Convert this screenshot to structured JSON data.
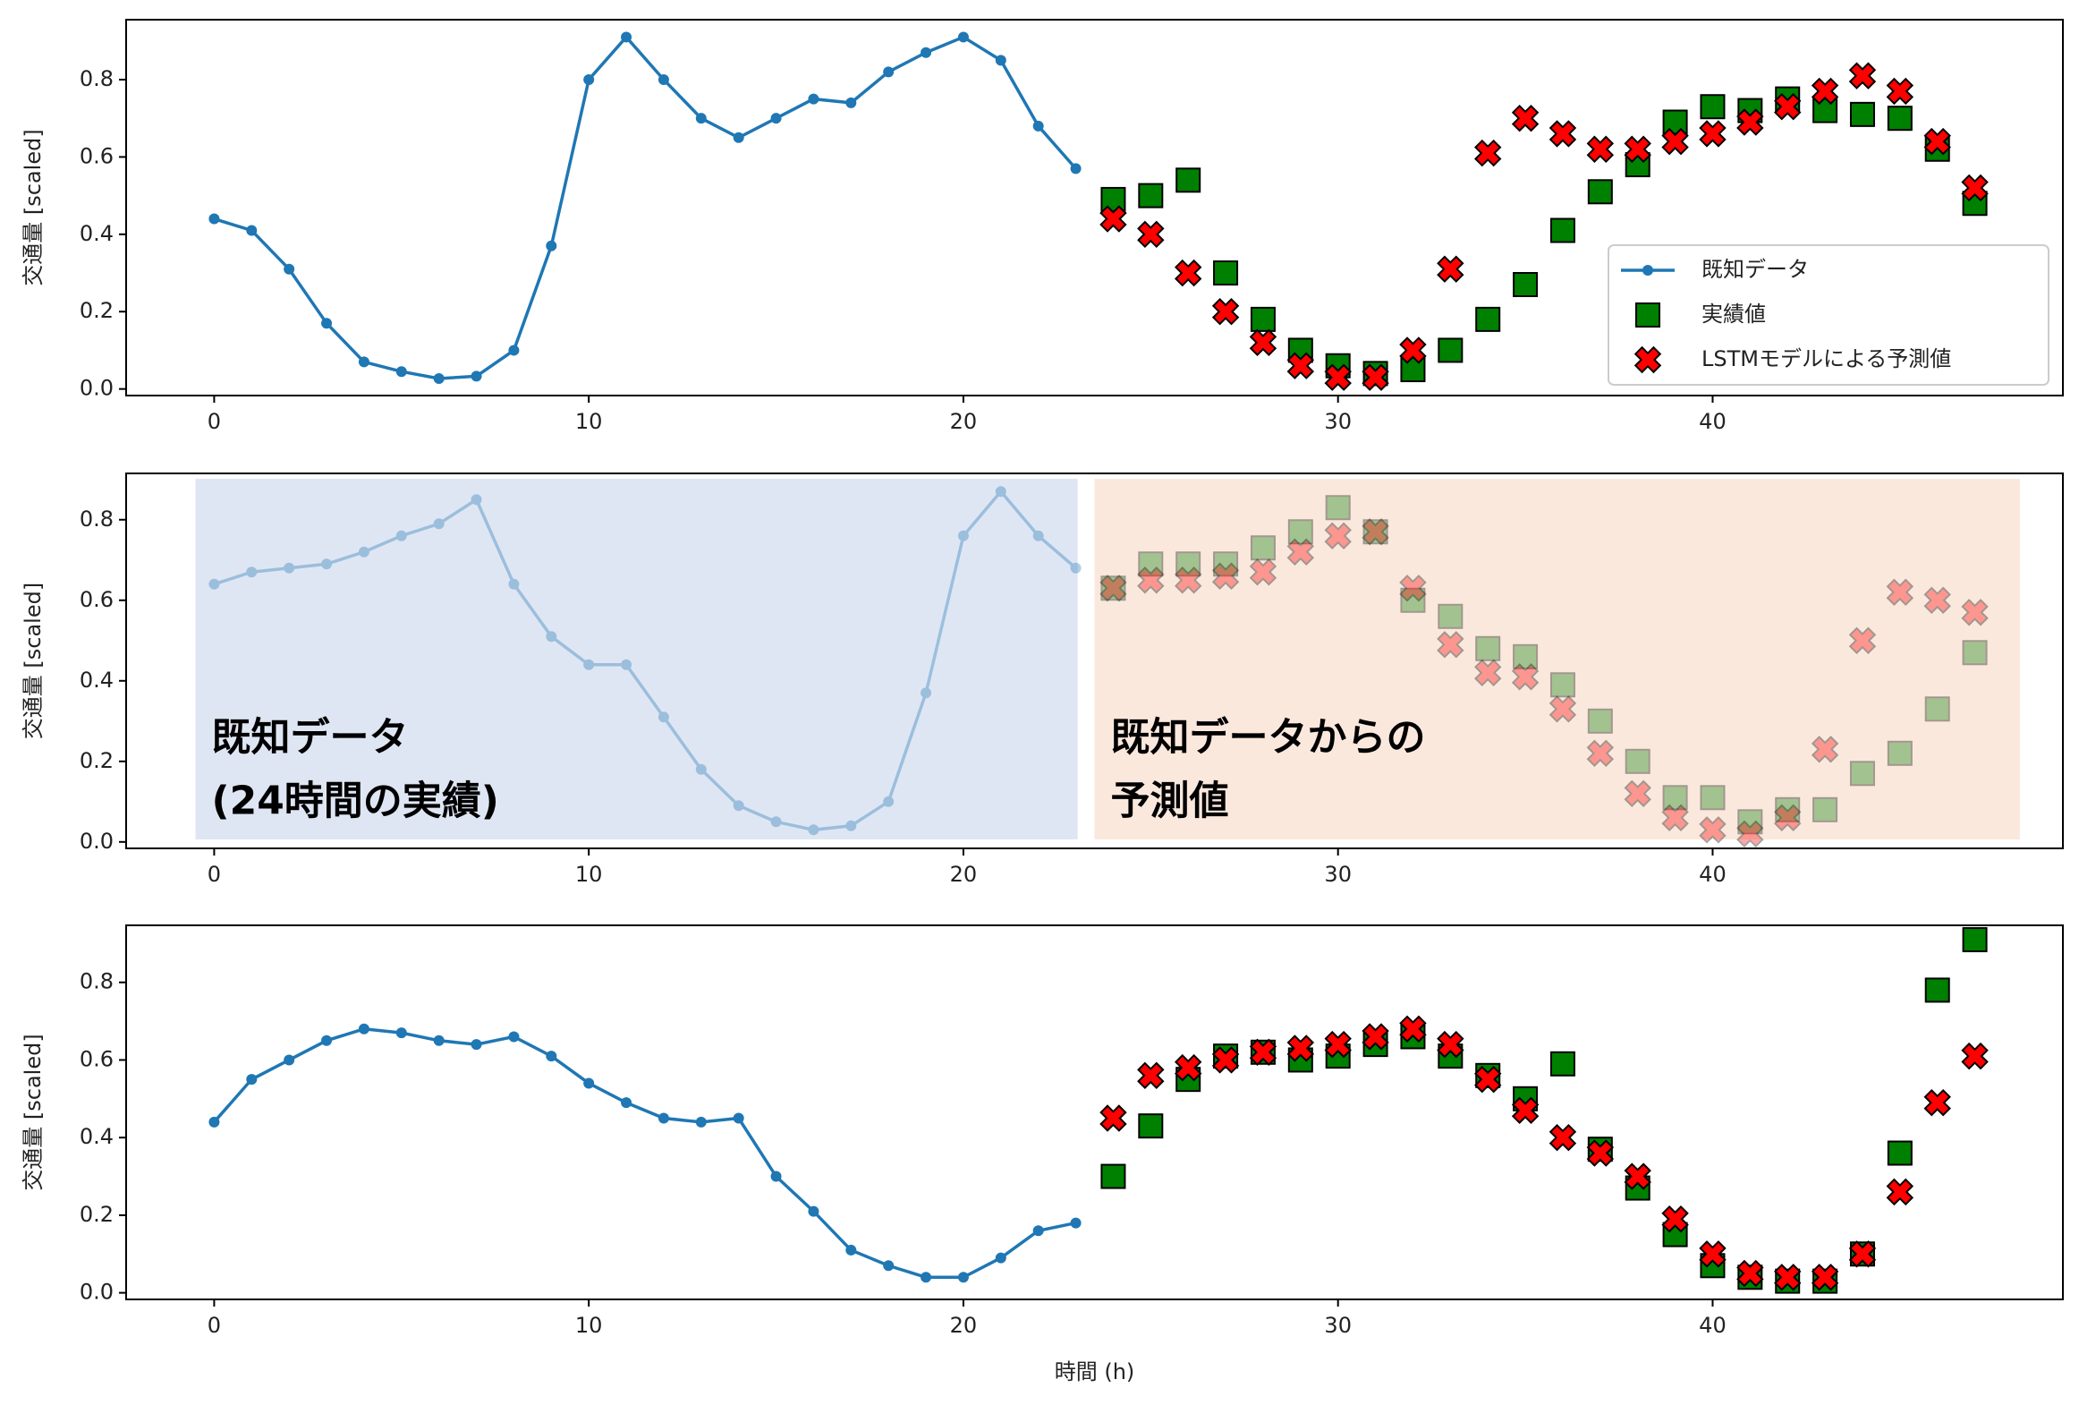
{
  "chart_data": [
    {
      "type": "line",
      "ylabel": "交通量 [scaled]",
      "xlim": [
        -2.35,
        49.35
      ],
      "ylim": [
        -0.017,
        0.955
      ],
      "xticks": [
        0,
        10,
        20,
        30,
        40
      ],
      "yticks": [
        {
          "value": 0,
          "label": "0.0"
        },
        0.2,
        0.4,
        0.6,
        0.8
      ],
      "legend": "lower right",
      "series": [
        {
          "name": "既知データ",
          "color": "#1f77b4",
          "marker": "o",
          "linestyle": "solid",
          "x": [
            0,
            1,
            2,
            3,
            4,
            5,
            6,
            7,
            8,
            9,
            10,
            11,
            12,
            13,
            14,
            15,
            16,
            17,
            18,
            19,
            20,
            21,
            22,
            23
          ],
          "values": [
            0.44,
            0.41,
            0.31,
            0.17,
            0.07,
            0.045,
            0.027,
            0.033,
            0.1,
            0.37,
            0.8,
            0.91,
            0.8,
            0.7,
            0.65,
            0.7,
            0.75,
            0.74,
            0.82,
            0.87,
            0.91,
            0.85,
            0.68,
            0.57
          ]
        },
        {
          "name": "実績値",
          "color": "#008000",
          "marker": "s",
          "x": [
            24,
            25,
            26,
            27,
            28,
            29,
            30,
            31,
            32,
            33,
            34,
            35,
            36,
            37,
            38,
            39,
            40,
            41,
            42,
            43,
            44,
            45,
            46,
            47
          ],
          "values": [
            0.49,
            0.5,
            0.54,
            0.3,
            0.18,
            0.1,
            0.06,
            0.04,
            0.05,
            0.1,
            0.18,
            0.27,
            0.41,
            0.51,
            0.58,
            0.69,
            0.73,
            0.72,
            0.75,
            0.72,
            0.71,
            0.7,
            0.62,
            0.48
          ]
        },
        {
          "name": "LSTMモデルによる予測値",
          "color": "#ff0000",
          "marker": "X",
          "x": [
            24,
            25,
            26,
            27,
            28,
            29,
            30,
            31,
            32,
            33,
            34,
            35,
            36,
            37,
            38,
            39,
            40,
            41,
            42,
            43,
            44,
            45,
            46,
            47
          ],
          "values": [
            0.44,
            0.4,
            0.3,
            0.2,
            0.12,
            0.06,
            0.03,
            0.03,
            0.1,
            0.31,
            0.61,
            0.7,
            0.66,
            0.62,
            0.62,
            0.64,
            0.66,
            0.69,
            0.73,
            0.77,
            0.81,
            0.77,
            0.64,
            0.52
          ]
        }
      ]
    },
    {
      "type": "line",
      "ylabel": "交通量 [scaled]",
      "xlim": [
        -2.35,
        49.35
      ],
      "ylim": [
        -0.016,
        0.915
      ],
      "xticks": [
        0,
        10,
        20,
        30,
        40
      ],
      "yticks": [
        {
          "value": 0,
          "label": "0.0"
        },
        0.2,
        0.4,
        0.6,
        0.8
      ],
      "marker_alpha": 0.35,
      "annotations": [
        {
          "lines": [
            "既知データ",
            "(24時間の実績)"
          ],
          "color": "#dfe6f3"
        },
        {
          "lines": [
            "既知データからの",
            "予測値"
          ],
          "color": "#fbe8dd"
        }
      ],
      "series": [
        {
          "color": "#1f77b4",
          "marker": "o",
          "linestyle": "solid",
          "x": [
            0,
            1,
            2,
            3,
            4,
            5,
            6,
            7,
            8,
            9,
            10,
            11,
            12,
            13,
            14,
            15,
            16,
            17,
            18,
            19,
            20,
            21,
            22,
            23
          ],
          "values": [
            0.64,
            0.67,
            0.68,
            0.69,
            0.72,
            0.76,
            0.79,
            0.85,
            0.64,
            0.51,
            0.44,
            0.44,
            0.31,
            0.18,
            0.09,
            0.05,
            0.03,
            0.04,
            0.1,
            0.37,
            0.76,
            0.87,
            0.76,
            0.68
          ]
        },
        {
          "color": "#008000",
          "marker": "s",
          "x": [
            24,
            25,
            26,
            27,
            28,
            29,
            30,
            31,
            32,
            33,
            34,
            35,
            36,
            37,
            38,
            39,
            40,
            41,
            42,
            43,
            44,
            45,
            46,
            47
          ],
          "values": [
            0.63,
            0.69,
            0.69,
            0.69,
            0.73,
            0.77,
            0.83,
            0.77,
            0.6,
            0.56,
            0.48,
            0.46,
            0.39,
            0.3,
            0.2,
            0.11,
            0.11,
            0.05,
            0.08,
            0.08,
            0.17,
            0.22,
            0.33,
            0.47
          ]
        },
        {
          "color": "#ff0000",
          "marker": "X",
          "x": [
            24,
            25,
            26,
            27,
            28,
            29,
            30,
            31,
            32,
            33,
            34,
            35,
            36,
            37,
            38,
            39,
            40,
            41,
            42,
            43,
            44,
            45,
            46,
            47
          ],
          "values": [
            0.63,
            0.65,
            0.65,
            0.66,
            0.67,
            0.72,
            0.76,
            0.77,
            0.63,
            0.49,
            0.42,
            0.41,
            0.33,
            0.22,
            0.12,
            0.06,
            0.03,
            0.02,
            0.06,
            0.23,
            0.5,
            0.62,
            0.6,
            0.57
          ]
        }
      ]
    },
    {
      "type": "line",
      "ylabel": "交通量 [scaled]",
      "xlabel": "時間 (h)",
      "xlim": [
        -2.35,
        49.35
      ],
      "ylim": [
        -0.017,
        0.947
      ],
      "xticks": [
        0,
        10,
        20,
        30,
        40
      ],
      "yticks": [
        {
          "value": 0,
          "label": "0.0"
        },
        0.2,
        0.4,
        0.6,
        0.8
      ],
      "series": [
        {
          "color": "#1f77b4",
          "marker": "o",
          "linestyle": "solid",
          "x": [
            0,
            1,
            2,
            3,
            4,
            5,
            6,
            7,
            8,
            9,
            10,
            11,
            12,
            13,
            14,
            15,
            16,
            17,
            18,
            19,
            20,
            21,
            22,
            23
          ],
          "values": [
            0.44,
            0.55,
            0.6,
            0.65,
            0.68,
            0.67,
            0.65,
            0.64,
            0.66,
            0.61,
            0.54,
            0.49,
            0.45,
            0.44,
            0.45,
            0.3,
            0.21,
            0.11,
            0.07,
            0.04,
            0.04,
            0.09,
            0.16,
            0.18
          ]
        },
        {
          "color": "#008000",
          "marker": "s",
          "x": [
            24,
            25,
            26,
            27,
            28,
            29,
            30,
            31,
            32,
            33,
            34,
            35,
            36,
            37,
            38,
            39,
            40,
            41,
            42,
            43,
            44,
            45,
            46,
            47
          ],
          "values": [
            0.3,
            0.43,
            0.55,
            0.61,
            0.62,
            0.6,
            0.61,
            0.64,
            0.66,
            0.61,
            0.56,
            0.5,
            0.59,
            0.37,
            0.27,
            0.15,
            0.07,
            0.04,
            0.03,
            0.03,
            0.1,
            0.36,
            0.78,
            0.91
          ]
        },
        {
          "color": "#ff0000",
          "marker": "X",
          "x": [
            24,
            25,
            26,
            27,
            28,
            29,
            30,
            31,
            32,
            33,
            34,
            35,
            36,
            37,
            38,
            39,
            40,
            41,
            42,
            43,
            44,
            45,
            46,
            47
          ],
          "values": [
            0.45,
            0.56,
            0.58,
            0.6,
            0.62,
            0.63,
            0.64,
            0.66,
            0.68,
            0.64,
            0.55,
            0.47,
            0.4,
            0.36,
            0.3,
            0.19,
            0.1,
            0.05,
            0.04,
            0.04,
            0.1,
            0.26,
            0.49,
            0.61
          ]
        }
      ]
    }
  ]
}
